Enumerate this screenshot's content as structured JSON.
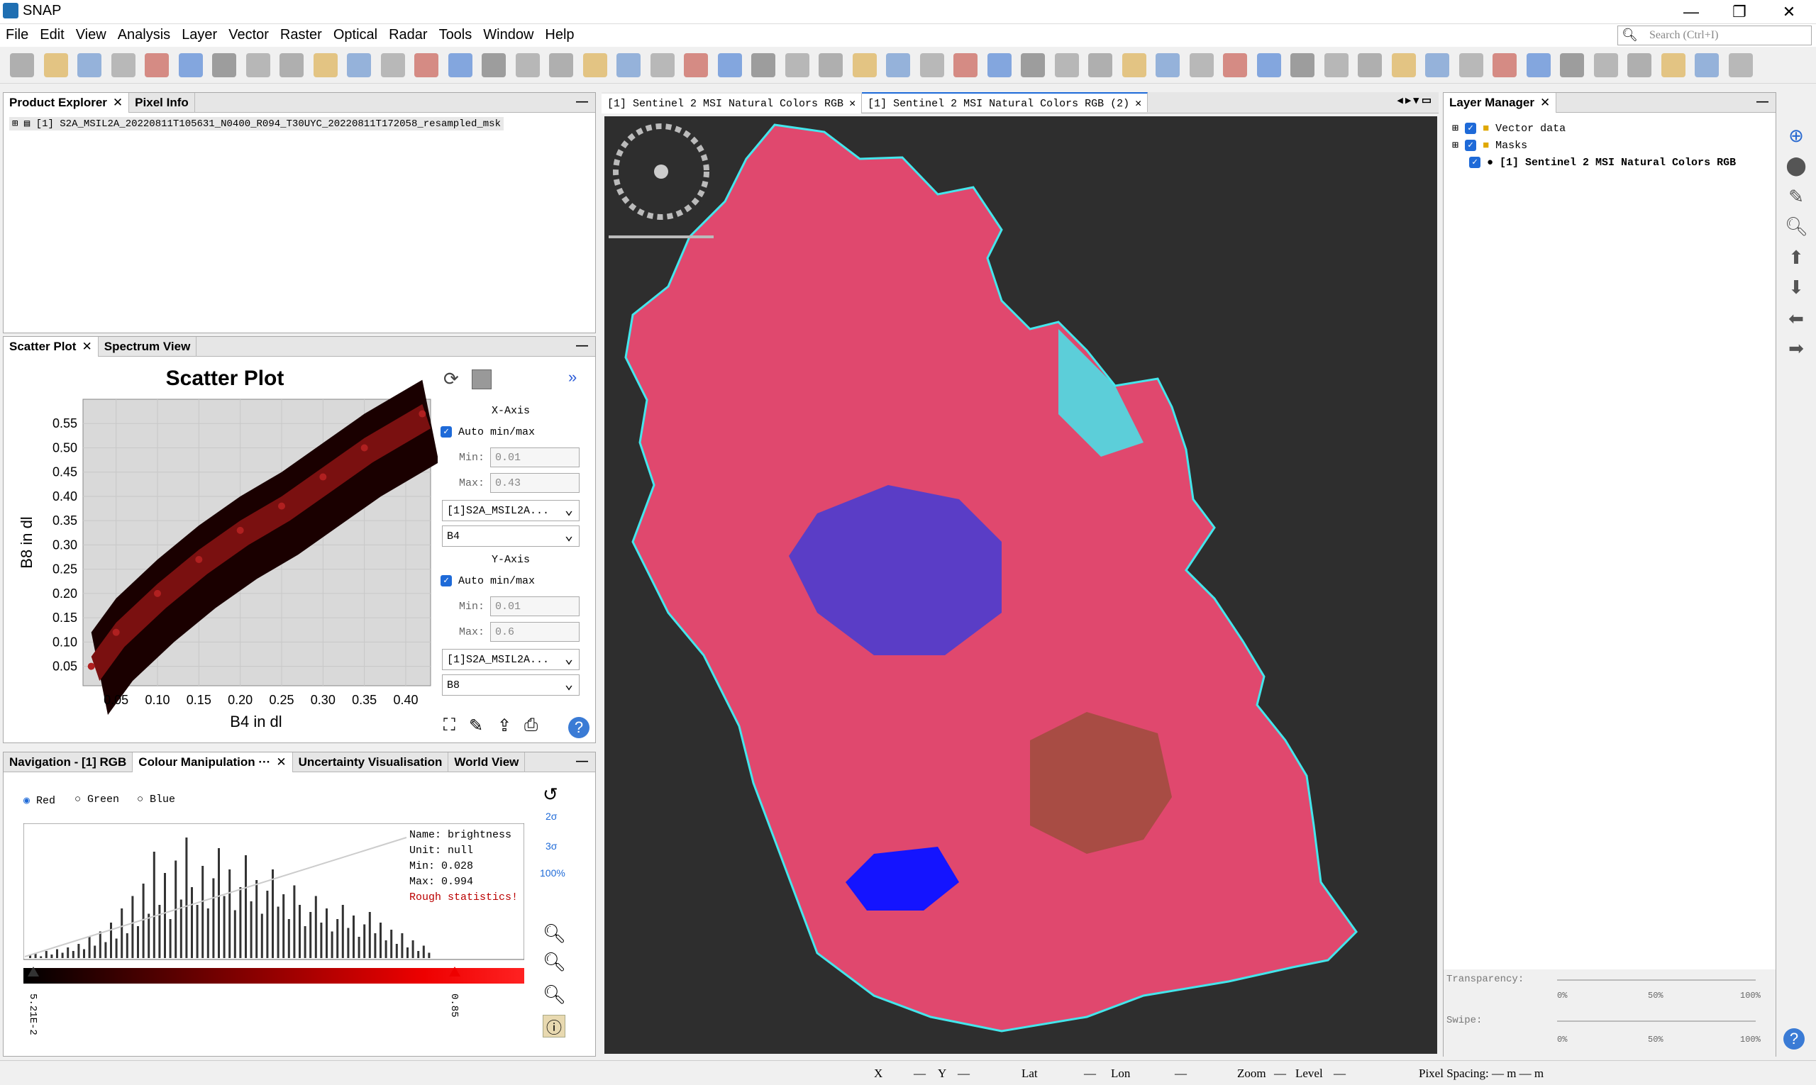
{
  "window": {
    "title": "SNAP",
    "min": "—",
    "max": "❐",
    "close": "✕"
  },
  "menu": [
    "File",
    "Edit",
    "View",
    "Analysis",
    "Layer",
    "Vector",
    "Raster",
    "Optical",
    "Radar",
    "Tools",
    "Window",
    "Help"
  ],
  "search": {
    "placeholder": "Search (Ctrl+I)"
  },
  "product_explorer": {
    "tabs": [
      "Product Explorer",
      "Pixel Info"
    ],
    "item": "[1] S2A_MSIL2A_20220811T105631_N0400_R094_T30UYC_20220811T172058_resampled_msk"
  },
  "scatter": {
    "tabs": [
      "Scatter Plot",
      "Spectrum View"
    ]
  },
  "chart_data": {
    "type": "scatter",
    "title": "Scatter Plot",
    "xlabel": "B4 in dl",
    "ylabel": "B8 in dl",
    "xlim": [
      0.01,
      0.43
    ],
    "ylim": [
      0.01,
      0.6
    ],
    "xticks": [
      "0.05",
      "0.10",
      "0.15",
      "0.20",
      "0.25",
      "0.30",
      "0.35",
      "0.40"
    ],
    "yticks": [
      "0.05",
      "0.10",
      "0.15",
      "0.20",
      "0.25",
      "0.30",
      "0.35",
      "0.40",
      "0.45",
      "0.50",
      "0.55"
    ],
    "density_ridge": [
      [
        0.02,
        0.05
      ],
      [
        0.05,
        0.12
      ],
      [
        0.1,
        0.2
      ],
      [
        0.15,
        0.27
      ],
      [
        0.2,
        0.33
      ],
      [
        0.25,
        0.38
      ],
      [
        0.3,
        0.44
      ],
      [
        0.35,
        0.5
      ],
      [
        0.42,
        0.57
      ]
    ]
  },
  "axis_settings": {
    "x_header": "X-Axis",
    "y_header": "Y-Axis",
    "auto": "Auto min/max",
    "min_label": "Min:",
    "max_label": "Max:",
    "x_min": "0.01",
    "x_max": "0.43",
    "y_min": "0.01",
    "y_max": "0.6",
    "x_product": "[1]S2A_MSIL2A...",
    "x_band": "B4",
    "y_product": "[1]S2A_MSIL2A...",
    "y_band": "B8"
  },
  "colour": {
    "tabs": [
      "Navigation - [1] RGB",
      "Colour Manipulation ···",
      "Uncertainty Visualisation",
      "World View"
    ],
    "radios": [
      "Red",
      "Green",
      "Blue"
    ],
    "info": [
      "Name: brightness",
      "Unit: null",
      "Min: 0.028",
      "Max: 0.994"
    ],
    "warn": "Rough statistics!",
    "slider_min": "5.21E-2",
    "slider_max": "0.85",
    "side_labels": [
      "2σ",
      "3σ",
      "100%"
    ]
  },
  "histogram": [
    2,
    3,
    1,
    4,
    2,
    5,
    3,
    6,
    4,
    8,
    5,
    12,
    7,
    15,
    9,
    20,
    11,
    28,
    14,
    35,
    18,
    42,
    25,
    60,
    30,
    48,
    22,
    55,
    33,
    68,
    40,
    30,
    52,
    28,
    45,
    62,
    35,
    50,
    27,
    40,
    58,
    32,
    44,
    25,
    38,
    50,
    29,
    36,
    22,
    41,
    30,
    18,
    26,
    35,
    20,
    28,
    15,
    22,
    30,
    17,
    24,
    12,
    19,
    26,
    14,
    20,
    10,
    16,
    8,
    14,
    6,
    10,
    4,
    7,
    3
  ],
  "image_tabs": [
    "[1] Sentinel 2 MSI Natural Colors RGB",
    "[1] Sentinel 2 MSI Natural Colors RGB (2)"
  ],
  "layer_manager": {
    "tab": "Layer Manager",
    "layers": [
      "Vector data",
      "Masks",
      "[1] Sentinel 2 MSI Natural Colors RGB"
    ],
    "transparency": "Transparency:",
    "swipe": "Swipe:",
    "ticks": [
      "0%",
      "50%",
      "100%"
    ]
  },
  "status": {
    "x": "X",
    "y": "Y",
    "lat": "Lat",
    "lon": "Lon",
    "zoom": "Zoom",
    "level": "Level",
    "dash": "—",
    "spacing": "Pixel Spacing: — m — m"
  },
  "colors": {
    "accent": "#1e6ad8",
    "map_bg": "#2e2e2e",
    "field_pink": "#e0486e",
    "urban_blue": "#4b3ccf",
    "water": "#1414ff",
    "cyan": "#44e6ec"
  }
}
